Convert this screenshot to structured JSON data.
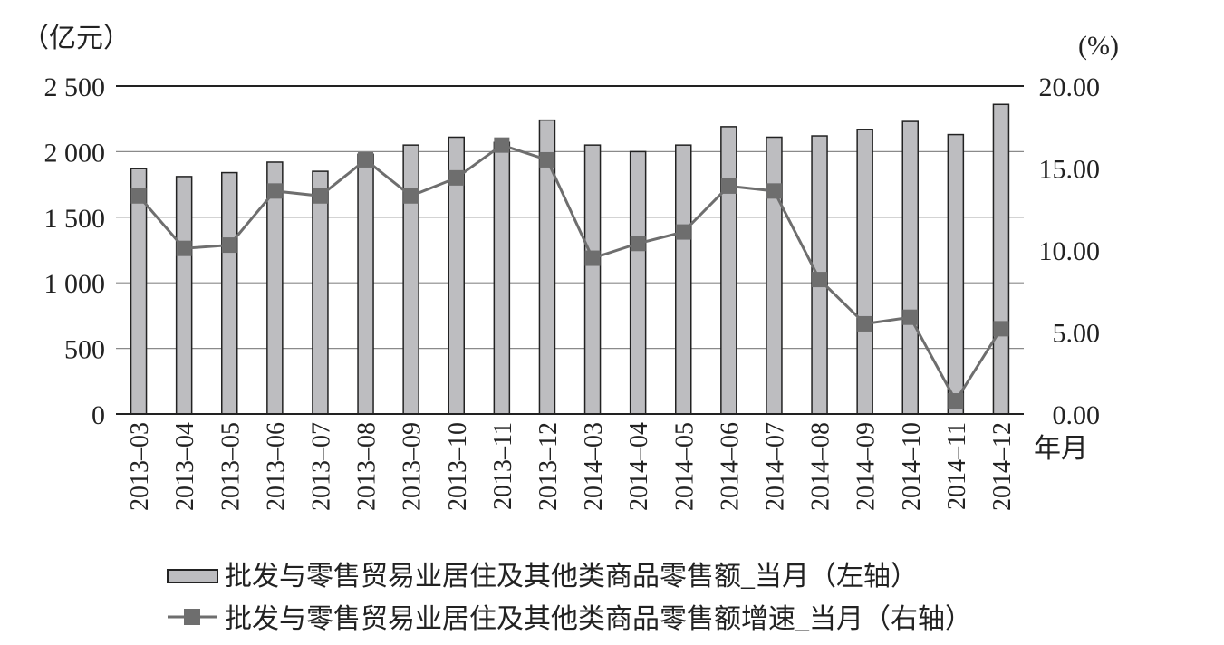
{
  "chart_data": {
    "type": "bar",
    "left_unit": "（亿元）",
    "right_unit": "(%)",
    "x_axis_suffix": "年月",
    "categories": [
      "2013–03",
      "2013–04",
      "2013–05",
      "2013–06",
      "2013–07",
      "2013–08",
      "2013–09",
      "2013–10",
      "2013–11",
      "2013–12",
      "2014–03",
      "2014–04",
      "2014–05",
      "2014–06",
      "2014–07",
      "2014–08",
      "2014–09",
      "2014–10",
      "2014–11",
      "2014–12"
    ],
    "left_axis": {
      "min": 0,
      "max": 2500,
      "ticks": [
        0,
        500,
        1000,
        1500,
        2000,
        2500
      ],
      "tick_labels": [
        "0",
        "500",
        "1 000",
        "1 500",
        "2 000",
        "2 500"
      ]
    },
    "right_axis": {
      "min": 0,
      "max": 20,
      "ticks": [
        0,
        5,
        10,
        15,
        20
      ],
      "tick_labels": [
        "0.00",
        "5.00",
        "10.00",
        "15.00",
        "20.00"
      ]
    },
    "grid": true,
    "legend_position": "bottom",
    "series": [
      {
        "name": "批发与零售贸易业居住及其他类商品零售额_当月（左轴）",
        "type": "bar",
        "axis": "left",
        "color": "#bdbdc0",
        "values": [
          1870,
          1810,
          1840,
          1920,
          1850,
          1980,
          2050,
          2110,
          2070,
          2240,
          2050,
          2000,
          2050,
          2190,
          2110,
          2120,
          2170,
          2230,
          2130,
          2360
        ]
      },
      {
        "name": "批发与零售贸易业居住及其他类商品零售额增速_当月（右轴）",
        "type": "line",
        "axis": "right",
        "color": "#6e6e6e",
        "values": [
          13.3,
          10.1,
          10.3,
          13.6,
          13.3,
          15.5,
          13.3,
          14.4,
          16.4,
          15.5,
          9.5,
          10.4,
          11.1,
          13.9,
          13.6,
          8.2,
          5.5,
          5.9,
          0.8,
          5.2
        ]
      }
    ]
  }
}
